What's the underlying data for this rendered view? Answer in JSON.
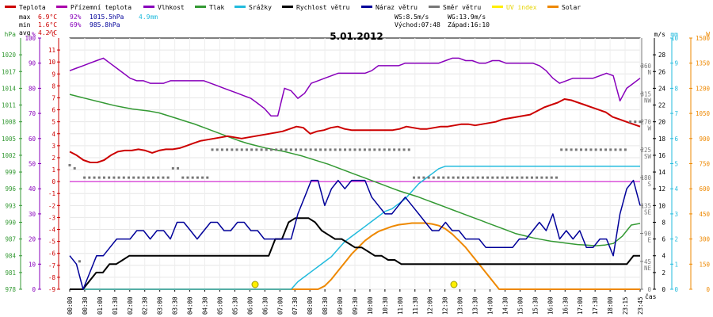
{
  "chart_data": {
    "type": "line",
    "title": "5.01.2012",
    "legend": [
      {
        "key": "temp",
        "label": "Teplota",
        "color": "#cc0000"
      },
      {
        "key": "feels",
        "label": "Přízemní teplota",
        "color": "#aa00aa"
      },
      {
        "key": "hum",
        "label": "Vlhkost",
        "color": "#8800bb"
      },
      {
        "key": "press",
        "label": "Tlak",
        "color": "#339933"
      },
      {
        "key": "rain",
        "label": "Srážky",
        "color": "#22bbdd"
      },
      {
        "key": "wind",
        "label": "Rychlost větru",
        "color": "#000000"
      },
      {
        "key": "gust",
        "label": "Náraz větru",
        "color": "#000099"
      },
      {
        "key": "dir",
        "label": "Směr větru",
        "color": "#777777"
      },
      {
        "key": "uv",
        "label": "UV index",
        "color": "#ffee00"
      },
      {
        "key": "solar",
        "label": "Solar",
        "color": "#ee8800"
      }
    ],
    "stats": {
      "max": {
        "label": "max",
        "temp": "6.9°C",
        "hum": "92%",
        "press": "1015.5hPa",
        "rain": "4.9mm"
      },
      "min": {
        "label": "min",
        "temp": "1.6°C",
        "hum": "69%",
        "press": "985.8hPa"
      },
      "avg": {
        "label": "avg",
        "temp": "4.2°C"
      }
    },
    "info": {
      "ws": "WS:8.5m/s",
      "wg": "WG:13.9m/s",
      "sunrise": "Východ:07:48",
      "sunset": "Západ:16:10"
    },
    "x_unit": "čas",
    "x_ticks": [
      "00:00",
      "00:30",
      "01:00",
      "01:30",
      "02:00",
      "02:30",
      "03:00",
      "03:30",
      "04:00",
      "04:30",
      "05:00",
      "05:30",
      "06:00",
      "06:30",
      "07:00",
      "07:30",
      "08:00",
      "08:30",
      "09:00",
      "09:30",
      "10:00",
      "10:30",
      "11:00",
      "11:30",
      "12:00",
      "12:30",
      "13:00",
      "13:30",
      "14:00",
      "14:30",
      "15:00",
      "15:30",
      "16:00",
      "16:30",
      "17:00",
      "17:30",
      "18:00",
      "23:15",
      "23:45"
    ],
    "axes": {
      "hpa": {
        "unit": "hPa",
        "color": "#339933",
        "ticks": [
          "978",
          "981",
          "984",
          "987",
          "990",
          "993",
          "996",
          "999",
          "1002",
          "1005",
          "1008",
          "1011",
          "1014",
          "1017",
          "1020"
        ],
        "range": [
          978,
          1023
        ]
      },
      "pct": {
        "unit": "%",
        "color": "#8800bb",
        "ticks": [
          "0",
          "10",
          "20",
          "30",
          "40",
          "50",
          "60",
          "70",
          "80",
          "90",
          "100"
        ],
        "range": [
          0,
          100
        ]
      },
      "degc": {
        "unit": "°C",
        "color": "#cc0000",
        "ticks": [
          "-9",
          "-8",
          "-7",
          "-6",
          "-5",
          "-4",
          "-3",
          "-2",
          "-1",
          "0",
          "1",
          "2",
          "3",
          "4",
          "5",
          "6",
          "7",
          "8",
          "9",
          "10",
          "11"
        ],
        "range": [
          -9,
          12
        ]
      },
      "dir": {
        "unit": "",
        "color": "#777777",
        "ticks": [
          "0",
          "45\nNE",
          "90\nE",
          "135\nSE",
          "180\nS",
          "225\nSW",
          "270\nW",
          "315\nNW",
          "360\nN"
        ],
        "range": [
          0,
          405
        ]
      },
      "ms": {
        "unit": "m/s",
        "color": "#000000",
        "ticks": [
          "0",
          "2",
          "4",
          "6",
          "8",
          "10",
          "12",
          "14",
          "16",
          "18",
          "20",
          "22",
          "24",
          "26",
          "28"
        ],
        "range": [
          0,
          30
        ]
      },
      "mm": {
        "unit": "mm",
        "color": "#22bbdd",
        "ticks": [
          "0",
          "1",
          "2",
          "3",
          "4",
          "5",
          "6",
          "7",
          "8",
          "9",
          "10"
        ],
        "range": [
          0,
          10
        ]
      },
      "w": {
        "unit": "W",
        "color": "#ee8800",
        "ticks": [
          "0",
          "150",
          "300",
          "450",
          "600",
          "750",
          "900",
          "1050",
          "1200",
          "1350",
          "1500"
        ],
        "range": [
          0,
          1500
        ]
      }
    },
    "series": {
      "temp": [
        2.5,
        2.2,
        1.8,
        1.6,
        1.6,
        1.8,
        2.2,
        2.5,
        2.6,
        2.6,
        2.7,
        2.6,
        2.4,
        2.6,
        2.7,
        2.7,
        2.8,
        3.0,
        3.2,
        3.4,
        3.5,
        3.6,
        3.7,
        3.8,
        3.7,
        3.6,
        3.7,
        3.8,
        3.9,
        4.0,
        4.1,
        4.2,
        4.4,
        4.6,
        4.5,
        4.0,
        4.2,
        4.3,
        4.5,
        4.6,
        4.4,
        4.3,
        4.3,
        4.3,
        4.3,
        4.3,
        4.3,
        4.3,
        4.4,
        4.6,
        4.5,
        4.4,
        4.4,
        4.5,
        4.6,
        4.6,
        4.7,
        4.8,
        4.8,
        4.7,
        4.8,
        4.9,
        5.0,
        5.2,
        5.3,
        5.4,
        5.5,
        5.6,
        5.9,
        6.2,
        6.4,
        6.6,
        6.9,
        6.8,
        6.6,
        6.4,
        6.2,
        6.0,
        5.8,
        5.4,
        5.2,
        5.0,
        4.8,
        4.6
      ],
      "hum": [
        87,
        88,
        89,
        90,
        91,
        92,
        90,
        88,
        86,
        84,
        83,
        83,
        82,
        82,
        82,
        83,
        83,
        83,
        83,
        83,
        83,
        82,
        81,
        80,
        79,
        78,
        77,
        76,
        74,
        72,
        69,
        69,
        80,
        79,
        76,
        78,
        82,
        83,
        84,
        85,
        86,
        86,
        86,
        86,
        86,
        87,
        89,
        89,
        89,
        89,
        90,
        90,
        90,
        90,
        90,
        90,
        91,
        92,
        92,
        91,
        91,
        90,
        90,
        91,
        91,
        90,
        90,
        90,
        90,
        90,
        89,
        87,
        84,
        82,
        83,
        84,
        84,
        84,
        84,
        85,
        86,
        85,
        75,
        80,
        82,
        84
      ],
      "press": [
        1012.9,
        1012.5,
        1012.1,
        1011.7,
        1011.3,
        1010.9,
        1010.6,
        1010.3,
        1010.1,
        1009.9,
        1009.6,
        1009.1,
        1008.6,
        1008.1,
        1007.6,
        1007.0,
        1006.4,
        1005.8,
        1005.2,
        1004.6,
        1004.1,
        1003.7,
        1003.3,
        1003.0,
        1002.7,
        1002.3,
        1001.9,
        1001.4,
        1000.9,
        1000.4,
        999.8,
        999.2,
        998.6,
        998.0,
        997.4,
        996.8,
        996.2,
        995.6,
        995.1,
        994.6,
        994.0,
        993.4,
        992.8,
        992.2,
        991.6,
        991.0,
        990.4,
        989.8,
        989.2,
        988.6,
        988.0,
        987.6,
        987.2,
        986.9,
        986.6,
        986.4,
        986.2,
        986.0,
        985.9,
        985.8,
        985.9,
        986.2,
        987.5,
        989.5,
        989.8
      ],
      "rain": [
        0,
        0,
        0,
        0,
        0,
        0,
        0,
        0,
        0,
        0,
        0,
        0,
        0,
        0,
        0,
        0,
        0,
        0,
        0,
        0,
        0,
        0,
        0,
        0,
        0,
        0,
        0,
        0,
        0,
        0,
        0,
        0,
        0,
        0,
        0.3,
        0.5,
        0.7,
        0.9,
        1.1,
        1.3,
        1.6,
        1.9,
        2.1,
        2.3,
        2.5,
        2.7,
        2.9,
        3.1,
        3.2,
        3.4,
        3.6,
        3.9,
        4.2,
        4.4,
        4.6,
        4.8,
        4.9,
        4.9,
        4.9,
        4.9,
        4.9,
        4.9,
        4.9,
        4.9,
        4.9,
        4.9,
        4.9,
        4.9,
        4.9,
        4.9,
        4.9,
        4.9,
        4.9,
        4.9,
        4.9,
        4.9,
        4.9,
        4.9,
        4.9,
        4.9,
        4.9,
        4.9,
        4.9,
        4.9,
        4.9,
        4.9
      ],
      "wind": [
        0,
        0,
        0,
        1,
        2,
        2,
        3,
        3,
        3.5,
        4,
        4,
        4,
        4,
        4,
        4,
        4,
        4,
        4,
        4,
        4,
        4,
        4,
        4,
        4,
        4,
        4,
        4,
        4,
        4,
        4,
        4,
        6,
        6,
        8,
        8.5,
        8.5,
        8.5,
        8,
        7,
        6.5,
        6,
        6,
        5.5,
        5,
        5,
        4.5,
        4,
        4,
        3.5,
        3.5,
        3,
        3,
        3,
        3,
        3,
        3,
        3,
        3,
        3,
        3,
        3,
        3,
        3,
        3,
        3,
        3,
        3,
        3,
        3,
        3,
        3,
        3,
        3,
        3,
        3,
        3,
        3,
        3,
        3,
        3,
        3,
        3,
        3,
        3,
        3,
        4,
        4
      ],
      "gust": [
        4,
        3,
        0,
        2,
        4,
        4,
        5,
        6,
        6,
        6,
        7,
        7,
        6,
        7,
        7,
        6,
        8,
        8,
        7,
        6,
        7,
        8,
        8,
        7,
        7,
        8,
        8,
        7,
        7,
        6,
        6,
        6,
        6,
        6,
        9,
        11,
        13,
        13,
        10,
        12,
        13,
        12,
        13,
        13,
        13,
        11,
        10,
        9,
        9,
        10,
        11,
        10,
        9,
        8,
        7,
        7,
        8,
        7,
        7,
        6,
        6,
        6,
        5,
        5,
        5,
        5,
        5,
        6,
        6,
        7,
        8,
        7,
        9,
        6,
        7,
        6,
        7,
        5,
        5,
        6,
        6,
        4,
        9,
        12,
        13,
        10
      ],
      "dir": [
        200,
        195,
        45,
        180,
        180,
        180,
        180,
        180,
        180,
        180,
        180,
        180,
        180,
        180,
        180,
        180,
        180,
        180,
        180,
        180,
        180,
        195,
        195,
        180,
        180,
        180,
        180,
        180,
        180,
        225,
        225,
        225,
        225,
        225,
        225,
        225,
        225,
        225,
        225,
        225,
        225,
        225,
        225,
        225,
        225,
        225,
        225,
        225,
        225,
        225,
        225,
        225,
        225,
        225,
        225,
        225,
        225,
        225,
        225,
        225,
        225,
        225,
        225,
        225,
        225,
        225,
        225,
        225,
        225,
        225,
        180,
        180,
        180,
        180,
        180,
        180,
        180,
        180,
        180,
        180,
        180,
        180,
        180,
        180,
        180,
        180,
        180,
        180,
        180,
        180,
        180,
        180,
        180,
        180,
        180,
        180,
        180,
        180,
        180,
        180,
        225,
        225,
        225,
        225,
        225,
        225,
        225,
        225,
        225,
        225,
        225,
        225,
        225,
        225,
        270,
        270,
        270
      ],
      "solar": [
        0,
        0,
        0,
        0,
        0,
        0,
        0,
        0,
        0,
        0,
        0,
        0,
        0,
        0,
        0,
        0,
        0,
        0,
        0,
        0,
        0,
        0,
        0,
        0,
        0,
        0,
        0,
        0,
        0,
        0,
        0,
        0,
        0,
        0,
        0,
        0,
        0,
        0,
        20,
        60,
        110,
        160,
        210,
        250,
        290,
        320,
        345,
        360,
        375,
        385,
        390,
        395,
        395,
        395,
        390,
        380,
        360,
        330,
        290,
        250,
        200,
        150,
        100,
        50,
        0,
        0,
        0,
        0,
        0,
        0,
        0,
        0,
        0,
        0,
        0,
        0,
        0,
        0,
        0,
        0,
        0,
        0,
        0,
        0,
        0,
        0
      ]
    },
    "sun_markers": [
      "07:48",
      "16:10"
    ]
  }
}
